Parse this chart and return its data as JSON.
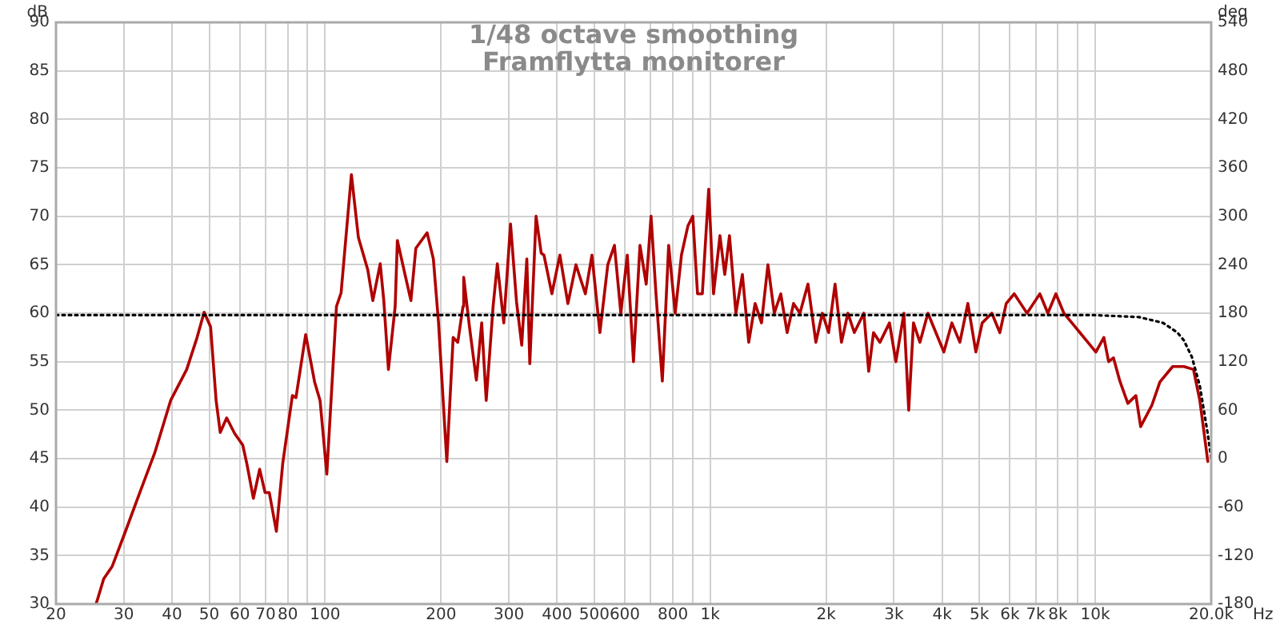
{
  "chart_data": {
    "type": "line",
    "title": "1/48 octave smoothing",
    "subtitle": "Framflytta monitorer",
    "xlabel": "Hz",
    "ylabel": "dB",
    "y2label": "deg",
    "log": "x",
    "grid": true,
    "legend": false,
    "marker": "none",
    "xlim": [
      20,
      20000
    ],
    "xticks": [
      20,
      30,
      40,
      50,
      60,
      70,
      80,
      {
        "value": 90,
        "label": null
      },
      100,
      200,
      300,
      400,
      500,
      600,
      {
        "value": 700,
        "label": null
      },
      800,
      {
        "value": 900,
        "label": null
      },
      {
        "value": 1000,
        "label": "1k"
      },
      {
        "value": 2000,
        "label": "2k"
      },
      {
        "value": 3000,
        "label": "3k"
      },
      {
        "value": 4000,
        "label": "4k"
      },
      {
        "value": 5000,
        "label": "5k"
      },
      {
        "value": 6000,
        "label": "6k"
      },
      {
        "value": 7000,
        "label": "7k"
      },
      {
        "value": 8000,
        "label": "8k"
      },
      {
        "value": 9000,
        "label": null
      },
      {
        "value": 10000,
        "label": "10k"
      },
      {
        "value": 20000,
        "label": "20.0k"
      }
    ],
    "ylim": [
      30,
      90
    ],
    "yticks": [
      30,
      35,
      40,
      45,
      50,
      55,
      60,
      65,
      70,
      75,
      80,
      85,
      90
    ],
    "y2lim": [
      -180,
      540
    ],
    "y2ticks": [
      -180,
      -120,
      -60,
      0,
      60,
      120,
      180,
      240,
      300,
      360,
      420,
      480,
      540
    ],
    "series": [
      {
        "type": "line",
        "color": "#000000",
        "line_style": "dotted",
        "x": [
          20,
          10000,
          12993,
          14997,
          16348,
          16982,
          17814,
          18686,
          19600,
          20000
        ],
        "values": [
          59.8,
          59.8,
          59.6,
          59.0,
          58.0,
          57.2,
          55.5,
          52.5,
          47.5,
          45
        ]
      },
      {
        "type": "line",
        "color": "#b00000",
        "line_style": "solid",
        "x": [
          25.4,
          25.6,
          26.6,
          28.0,
          30.3,
          32.8,
          36.1,
          39.7,
          43.7,
          46.5,
          48.5,
          50.4,
          52.1,
          53.4,
          55.5,
          58.2,
          61.1,
          62.6,
          65.1,
          67.6,
          69.8,
          71.6,
          74.7,
          77.6,
          82.2,
          84.0,
          89.0,
          93.9,
          97.0,
          101,
          107,
          110,
          117,
          122,
          129,
          133,
          139,
          142,
          146,
          152,
          154,
          167,
          172,
          184,
          191,
          197,
          207,
          215,
          221,
          228,
          229,
          237,
          247,
          255,
          262,
          273,
          280,
          291,
          303,
          314,
          324,
          334,
          340,
          353,
          364,
          370,
          388,
          407,
          427,
          448,
          474,
          493,
          517,
          542,
          564,
          586,
          609,
          632,
          657,
          682,
          702,
          723,
          751,
          780,
          811,
          842,
          875,
          901,
          927,
          954,
          991,
          1020,
          1060,
          1091,
          1122,
          1166,
          1212,
          1259,
          1308,
          1359,
          1412,
          1467,
          1525,
          1584,
          1646,
          1710,
          1794,
          1881,
          1955,
          2030,
          2110,
          2192,
          2278,
          2367,
          2506,
          2580,
          2655,
          2759,
          2921,
          3035,
          3184,
          3277,
          3372,
          3504,
          3676,
          3855,
          4044,
          4242,
          4450,
          4667,
          4896,
          5086,
          5387,
          5651,
          5871,
          6159,
          6399,
          6649,
          6908,
          7179,
          7531,
          7901,
          8288,
          8695,
          9120,
          9566,
          10034,
          10526,
          10831,
          11148,
          11582,
          12150,
          12748,
          13118,
          14026,
          14714,
          15884,
          16982,
          17986,
          18686,
          19600
        ],
        "values": [
          30,
          30.4,
          32.6,
          33.9,
          37.5,
          41.2,
          45.6,
          51.0,
          54.2,
          57.5,
          60.1,
          58.6,
          51,
          47.7,
          49.2,
          47.6,
          46.4,
          44.5,
          40.9,
          43.9,
          41.5,
          41.5,
          37.5,
          44.5,
          51.5,
          51.3,
          57.8,
          52.9,
          51,
          43.4,
          60.7,
          62.1,
          74.3,
          67.8,
          64.5,
          61.3,
          65.1,
          61.3,
          54.2,
          60.7,
          67.5,
          61.3,
          66.7,
          68.3,
          65.6,
          59.0,
          44.7,
          57.5,
          57,
          60.7,
          63.7,
          58.6,
          53.1,
          59,
          51,
          60.7,
          65.1,
          59,
          69.2,
          61.2,
          56.7,
          65.6,
          54.8,
          70.0,
          66.2,
          66,
          62,
          66,
          61,
          65,
          62,
          66,
          58,
          65,
          67,
          60,
          66,
          55,
          67,
          63,
          70,
          62,
          53,
          67,
          60,
          66,
          69,
          70,
          62,
          62,
          72.8,
          62,
          68,
          64,
          68,
          60,
          64,
          57,
          61,
          59,
          65,
          60,
          62,
          58,
          61,
          60,
          63,
          57,
          60,
          58,
          63,
          57,
          60,
          58,
          60,
          54,
          58,
          57,
          59,
          55,
          60,
          50,
          59,
          57,
          60,
          58,
          56,
          59,
          57,
          61,
          56,
          59,
          60,
          58,
          61,
          62,
          61,
          60,
          61,
          62,
          60,
          62,
          60,
          59,
          58,
          57,
          56,
          57.5,
          55,
          55.4,
          53,
          50.7,
          51.5,
          48.3,
          50.5,
          52.9,
          54.5,
          54.5,
          54.2,
          51,
          44.7
        ]
      }
    ]
  }
}
